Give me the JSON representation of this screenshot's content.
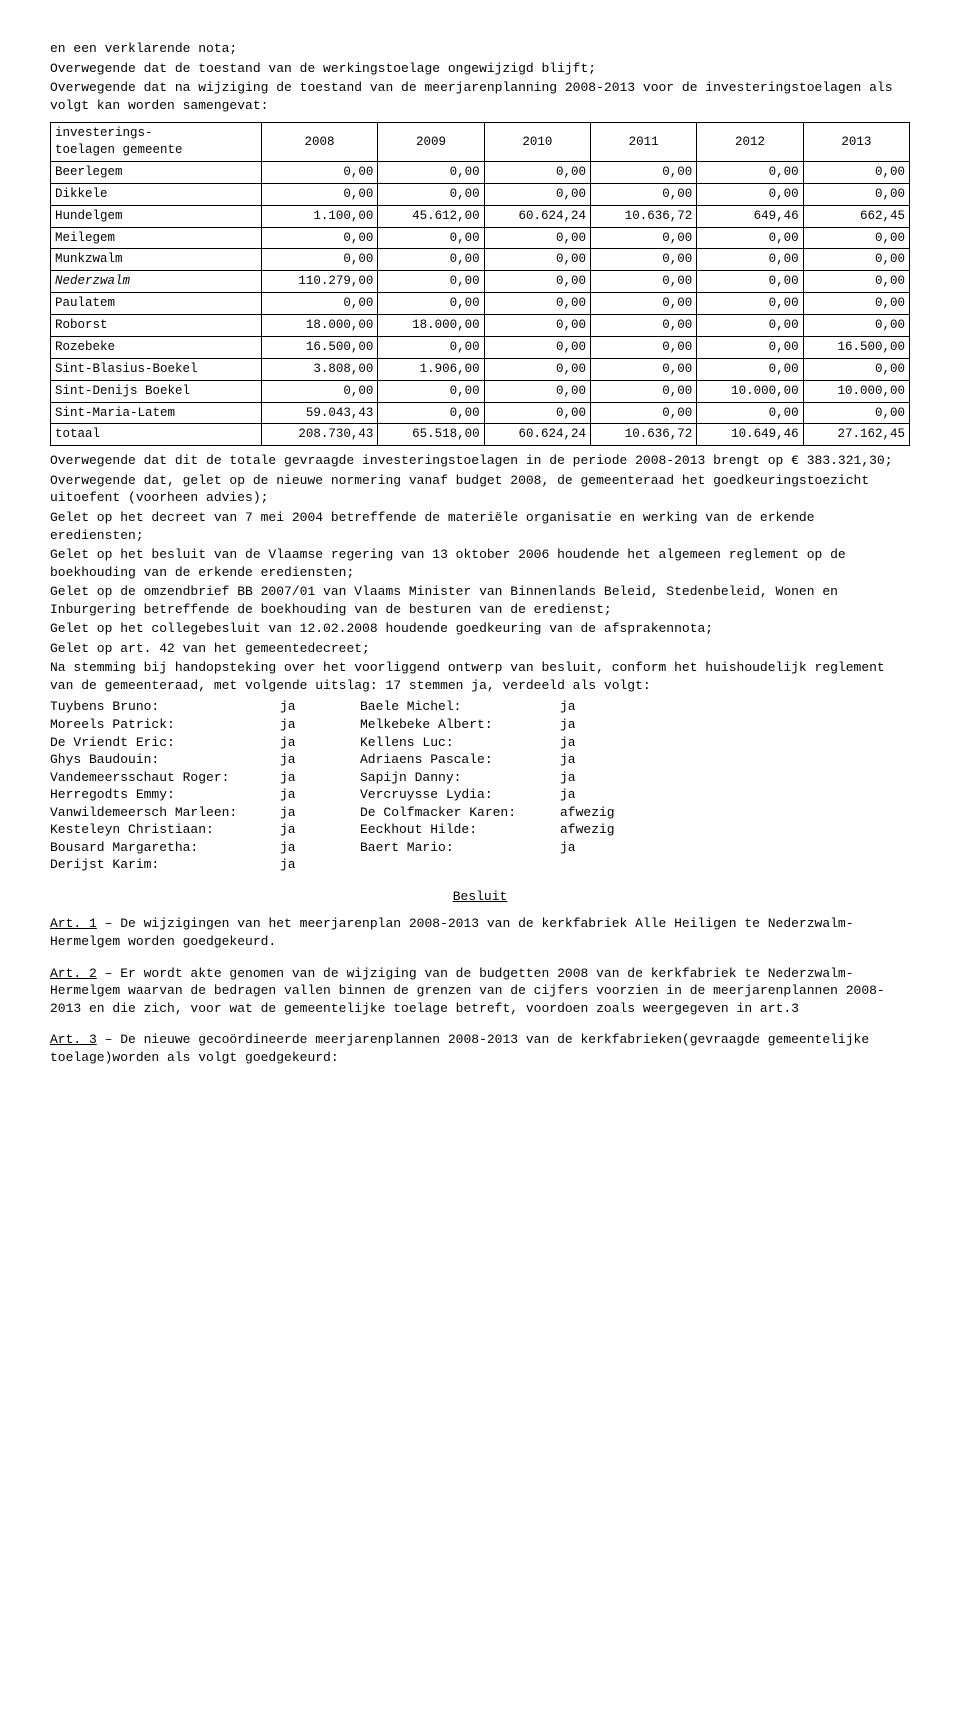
{
  "pre_text": [
    "en een verklarende nota;",
    "Overwegende dat de toestand van de werkingstoelage ongewijzigd blijft;",
    "Overwegende dat na wijziging de toestand van de meerjarenplanning 2008-2013 voor de investeringstoelagen als volgt kan worden samengevat:"
  ],
  "table": {
    "corner": "investerings-\ntoelagen gemeente",
    "years": [
      "2008",
      "2009",
      "2010",
      "2011",
      "2012",
      "2013"
    ],
    "rows": [
      {
        "label": "Beerlegem",
        "vals": [
          "0,00",
          "0,00",
          "0,00",
          "0,00",
          "0,00",
          "0,00"
        ]
      },
      {
        "label": "Dikkele",
        "vals": [
          "0,00",
          "0,00",
          "0,00",
          "0,00",
          "0,00",
          "0,00"
        ]
      },
      {
        "label": "Hundelgem",
        "vals": [
          "1.100,00",
          "45.612,00",
          "60.624,24",
          "10.636,72",
          "649,46",
          "662,45"
        ]
      },
      {
        "label": "Meilegem",
        "vals": [
          "0,00",
          "0,00",
          "0,00",
          "0,00",
          "0,00",
          "0,00"
        ]
      },
      {
        "label": "Munkzwalm",
        "vals": [
          "0,00",
          "0,00",
          "0,00",
          "0,00",
          "0,00",
          "0,00"
        ]
      },
      {
        "label": "Nederzwalm",
        "italic": true,
        "vals": [
          "110.279,00",
          "0,00",
          "0,00",
          "0,00",
          "0,00",
          "0,00"
        ]
      },
      {
        "label": "Paulatem",
        "vals": [
          "0,00",
          "0,00",
          "0,00",
          "0,00",
          "0,00",
          "0,00"
        ]
      },
      {
        "label": "Roborst",
        "vals": [
          "18.000,00",
          "18.000,00",
          "0,00",
          "0,00",
          "0,00",
          "0,00"
        ]
      },
      {
        "label": "Rozebeke",
        "vals": [
          "16.500,00",
          "0,00",
          "0,00",
          "0,00",
          "0,00",
          "16.500,00"
        ]
      },
      {
        "label": "Sint-Blasius-Boekel",
        "vals": [
          "3.808,00",
          "1.906,00",
          "0,00",
          "0,00",
          "0,00",
          "0,00"
        ]
      },
      {
        "label": "Sint-Denijs Boekel",
        "vals": [
          "0,00",
          "0,00",
          "0,00",
          "0,00",
          "10.000,00",
          "10.000,00"
        ]
      },
      {
        "label": "Sint-Maria-Latem",
        "vals": [
          "59.043,43",
          "0,00",
          "0,00",
          "0,00",
          "0,00",
          "0,00"
        ]
      },
      {
        "label": "totaal",
        "vals": [
          "208.730,43",
          "65.518,00",
          "60.624,24",
          "10.636,72",
          "10.649,46",
          "27.162,45"
        ]
      }
    ]
  },
  "post_text": [
    "Overwegende dat dit de totale gevraagde investeringstoelagen in de periode 2008-2013 brengt op € 383.321,30;",
    "Overwegende dat, gelet op de nieuwe normering vanaf budget 2008, de gemeenteraad het goedkeuringstoezicht uitoefent (voorheen advies);",
    "Gelet op het decreet van 7 mei 2004 betreffende de materiële organisatie en werking van de erkende erediensten;",
    "Gelet op het besluit van de Vlaamse regering van 13 oktober 2006 houdende het algemeen reglement op de boekhouding van de erkende erediensten;",
    "Gelet op de omzendbrief BB 2007/01 van Vlaams Minister van Binnenlands Beleid, Stedenbeleid, Wonen en Inburgering betreffende de boekhouding van de besturen van de eredienst;",
    "Gelet op het collegebesluit van 12.02.2008 houdende goedkeuring van de afsprakennota;",
    "Gelet op art. 42 van het gemeentedecreet;",
    "Na stemming bij handopsteking over het voorliggend ontwerp van besluit, conform het huishoudelijk reglement van de gemeenteraad, met volgende uitslag: 17 stemmen ja, verdeeld als volgt:"
  ],
  "votes": [
    {
      "l": "Tuybens Bruno:",
      "lv": "ja",
      "r": "Baele Michel:",
      "rv": "ja"
    },
    {
      "l": "Moreels Patrick:",
      "lv": "ja",
      "r": "Melkebeke Albert:",
      "rv": "ja"
    },
    {
      "l": "De Vriendt Eric:",
      "lv": "ja",
      "r": "Kellens Luc:",
      "rv": "ja"
    },
    {
      "l": "Ghys Baudouin:",
      "lv": "ja",
      "r": "Adriaens Pascale:",
      "rv": "ja"
    },
    {
      "l": "Vandemeersschaut Roger:",
      "lv": "ja",
      "r": "Sapijn Danny:",
      "rv": "ja"
    },
    {
      "l": "Herregodts Emmy:",
      "lv": "ja",
      "r": "Vercruysse Lydia:",
      "rv": "ja"
    },
    {
      "l": "Vanwildemeersch Marleen:",
      "lv": "ja",
      "r": "De Colfmacker Karen:",
      "rv": "afwezig"
    },
    {
      "l": "Kesteleyn Christiaan:",
      "lv": "ja",
      "r": "Eeckhout Hilde:",
      "rv": "afwezig"
    },
    {
      "l": "Bousard Margaretha:",
      "lv": "ja",
      "r": "Baert Mario:",
      "rv": "ja"
    },
    {
      "l": "Derijst Karim:",
      "lv": "ja",
      "r": "",
      "rv": ""
    }
  ],
  "heading": "Besluit",
  "articles": [
    {
      "u": "Art. 1",
      "rest": " – De wijzigingen van het meerjarenplan 2008-2013 van de kerkfabriek Alle Heiligen te Nederzwalm-Hermelgem worden goedgekeurd."
    },
    {
      "u": "Art. 2",
      "rest": " – Er wordt akte genomen van de wijziging van de budgetten 2008 van de kerkfabriek te Nederzwalm-Hermelgem waarvan de bedragen vallen binnen de grenzen van de cijfers voorzien in de meerjarenplannen 2008-2013 en die zich, voor wat de gemeentelijke toelage betreft, voordoen zoals weergegeven in art.3"
    },
    {
      "u": "Art. 3",
      "rest": " – De nieuwe gecoördineerde meerjarenplannen 2008-2013 van de kerkfabrieken(gevraagde gemeentelijke toelage)worden als volgt goedgekeurd:"
    }
  ]
}
